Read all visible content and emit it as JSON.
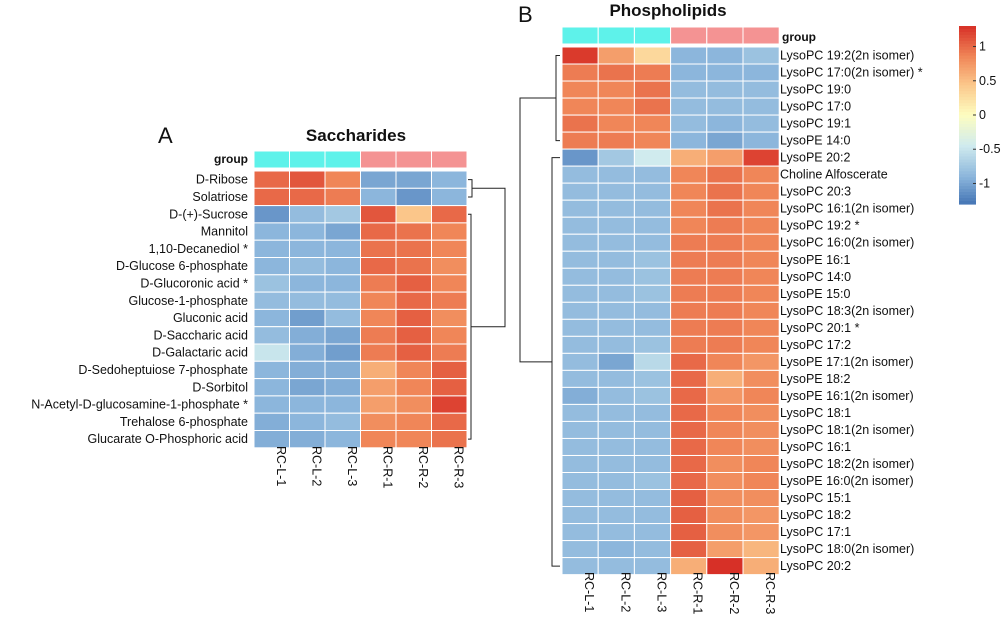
{
  "chart_data": [
    {
      "type": "heatmap",
      "panel": "A",
      "title": "Saccharides",
      "group_label": "group",
      "columns": [
        "RC-L-1",
        "RC-L-2",
        "RC-L-3",
        "RC-R-1",
        "RC-R-2",
        "RC-R-3"
      ],
      "column_groups": [
        "L",
        "L",
        "L",
        "R",
        "R",
        "R"
      ],
      "rows": [
        "D-Ribose",
        "Solatriose",
        "D-(+)-Sucrose",
        "Mannitol",
        "1,10-Decanediol *",
        "D-Glucose 6-phosphate",
        "D-Glucoronic acid *",
        "Glucose-1-phosphate",
        "Gluconic acid",
        "D-Saccharic acid",
        "D-Galactaric acid",
        "D-Sedoheptuiose 7-phosphate",
        "D-Sorbitol",
        "N-Acetyl-D-glucosamine-1-phosphate *",
        "Trehalose 6-phosphate",
        "Glucarate O-Phosphoric acid"
      ],
      "values": [
        [
          1.0,
          1.1,
          0.85,
          -1.0,
          -1.0,
          -0.9
        ],
        [
          1.0,
          1.0,
          0.9,
          -0.9,
          -1.1,
          -0.9
        ],
        [
          -1.1,
          -0.85,
          -0.75,
          1.1,
          0.45,
          1.0
        ],
        [
          -0.9,
          -0.9,
          -1.0,
          1.0,
          0.95,
          0.85
        ],
        [
          -0.9,
          -0.9,
          -0.9,
          0.95,
          0.95,
          0.85
        ],
        [
          -0.9,
          -0.85,
          -0.9,
          1.0,
          0.95,
          0.8
        ],
        [
          -0.8,
          -0.9,
          -0.9,
          0.9,
          1.05,
          0.85
        ],
        [
          -0.85,
          -0.85,
          -0.85,
          0.85,
          1.0,
          0.9
        ],
        [
          -0.9,
          -1.05,
          -0.85,
          0.85,
          1.05,
          0.8
        ],
        [
          -0.85,
          -0.95,
          -1.0,
          0.9,
          1.05,
          0.85
        ],
        [
          -0.5,
          -0.95,
          -1.05,
          0.9,
          1.05,
          0.9
        ],
        [
          -0.9,
          -0.95,
          -0.95,
          0.6,
          0.85,
          1.05
        ],
        [
          -0.9,
          -1.0,
          -0.95,
          0.7,
          0.85,
          1.05
        ],
        [
          -0.9,
          -0.9,
          -0.9,
          0.7,
          0.8,
          1.2
        ],
        [
          -0.95,
          -0.9,
          -0.85,
          0.8,
          0.85,
          1.0
        ],
        [
          -0.95,
          -0.95,
          -0.9,
          0.85,
          0.85,
          0.95
        ]
      ]
    },
    {
      "type": "heatmap",
      "panel": "B",
      "title": "Phospholipids",
      "group_label": "group",
      "columns": [
        "RC-L-1",
        "RC-L-2",
        "RC-L-3",
        "RC-R-1",
        "RC-R-2",
        "RC-R-3"
      ],
      "column_groups": [
        "L",
        "L",
        "L",
        "R",
        "R",
        "R"
      ],
      "rows": [
        "LysoPC 19:2(2n isomer)",
        "LysoPC 17:0(2n isomer) *",
        "LysoPC 19:0",
        "LysoPC 17:0",
        "LysoPC 19:1",
        "LysoPE 14:0",
        "LysoPE 20:2",
        "Choline Alfoscerate",
        "LysoPC 20:3",
        "LysoPC 16:1(2n isomer)",
        "LysoPC 19:2 *",
        "LysoPC 16:0(2n isomer)",
        "LysoPE 16:1",
        "LysoPC 14:0",
        "LysoPE 15:0",
        "LysoPC 18:3(2n isomer)",
        "LysoPC 20:1 *",
        "LysoPC 17:2",
        "LysoPE 17:1(2n isomer)",
        "LysoPE 18:2",
        "LysoPE 16:1(2n isomer)",
        "LysoPC 18:1",
        "LysoPC 18:1(2n isomer)",
        "LysoPC 16:1",
        "LysoPC 18:2(2n isomer)",
        "LysoPE 16:0(2n isomer)",
        "LysoPC 15:1",
        "LysoPC 18:2",
        "LysoPC 17:1",
        "LysoPC 18:0(2n isomer)",
        "LysoPC 20:2"
      ],
      "values": [
        [
          1.25,
          0.7,
          0.3,
          -0.9,
          -0.9,
          -0.8
        ],
        [
          0.9,
          0.95,
          0.9,
          -0.9,
          -0.9,
          -0.9
        ],
        [
          0.85,
          0.85,
          0.95,
          -0.85,
          -0.85,
          -0.85
        ],
        [
          0.85,
          0.85,
          0.95,
          -0.85,
          -0.85,
          -0.85
        ],
        [
          0.95,
          0.85,
          0.85,
          -0.85,
          -0.9,
          -0.85
        ],
        [
          0.9,
          0.9,
          0.85,
          -0.9,
          -1.0,
          -0.9
        ],
        [
          -1.1,
          -0.75,
          -0.45,
          0.6,
          0.7,
          1.2
        ],
        [
          -0.85,
          -0.85,
          -0.85,
          0.85,
          0.95,
          0.85
        ],
        [
          -0.85,
          -0.85,
          -0.85,
          0.85,
          0.95,
          0.85
        ],
        [
          -0.85,
          -0.85,
          -0.85,
          0.85,
          0.95,
          0.85
        ],
        [
          -0.85,
          -0.85,
          -0.85,
          0.85,
          0.9,
          0.85
        ],
        [
          -0.85,
          -0.85,
          -0.85,
          0.9,
          0.9,
          0.85
        ],
        [
          -0.85,
          -0.85,
          -0.8,
          0.9,
          0.9,
          0.85
        ],
        [
          -0.85,
          -0.85,
          -0.8,
          0.9,
          0.9,
          0.85
        ],
        [
          -0.85,
          -0.85,
          -0.8,
          0.9,
          0.9,
          0.85
        ],
        [
          -0.85,
          -0.85,
          -0.85,
          0.9,
          0.9,
          0.85
        ],
        [
          -0.85,
          -0.85,
          -0.85,
          0.9,
          0.9,
          0.85
        ],
        [
          -0.85,
          -0.85,
          -0.8,
          0.9,
          0.9,
          0.85
        ],
        [
          -0.85,
          -1.0,
          -0.6,
          1.0,
          0.85,
          0.75
        ],
        [
          -0.85,
          -0.85,
          -0.8,
          1.0,
          0.6,
          0.8
        ],
        [
          -0.95,
          -0.85,
          -0.8,
          1.0,
          0.75,
          0.85
        ],
        [
          -0.85,
          -0.85,
          -0.85,
          1.0,
          0.85,
          0.8
        ],
        [
          -0.85,
          -0.85,
          -0.85,
          1.0,
          0.85,
          0.8
        ],
        [
          -0.85,
          -0.85,
          -0.85,
          1.0,
          0.85,
          0.8
        ],
        [
          -0.85,
          -0.85,
          -0.85,
          1.0,
          0.8,
          0.85
        ],
        [
          -0.85,
          -0.85,
          -0.8,
          1.0,
          0.8,
          0.85
        ],
        [
          -0.85,
          -0.85,
          -0.85,
          1.05,
          0.8,
          0.8
        ],
        [
          -0.85,
          -0.85,
          -0.85,
          1.05,
          0.8,
          0.75
        ],
        [
          -0.85,
          -0.85,
          -0.85,
          1.05,
          0.8,
          0.75
        ],
        [
          -0.85,
          -0.9,
          -0.85,
          1.05,
          0.7,
          0.55
        ],
        [
          -0.85,
          -0.85,
          -0.85,
          0.6,
          1.3,
          0.6
        ]
      ]
    }
  ],
  "panels": {
    "A": {
      "letter": "A"
    },
    "B": {
      "letter": "B"
    }
  },
  "group_colors": {
    "L": "#5ef2ea",
    "R": "#f49393"
  },
  "colorscale": {
    "stops": [
      {
        "v": -1.3,
        "color": "#4576b5"
      },
      {
        "v": -0.9,
        "color": "#8cb6dc"
      },
      {
        "v": -0.45,
        "color": "#d0ebee"
      },
      {
        "v": 0.0,
        "color": "#fdfdc0"
      },
      {
        "v": 0.45,
        "color": "#fbc68a"
      },
      {
        "v": 0.85,
        "color": "#f08658"
      },
      {
        "v": 1.3,
        "color": "#d73027"
      }
    ],
    "ticks": [
      1,
      0.5,
      0,
      -0.5,
      -1
    ],
    "tick_labels": [
      "1",
      "0.5",
      "0",
      "-0.5",
      "-1"
    ]
  }
}
